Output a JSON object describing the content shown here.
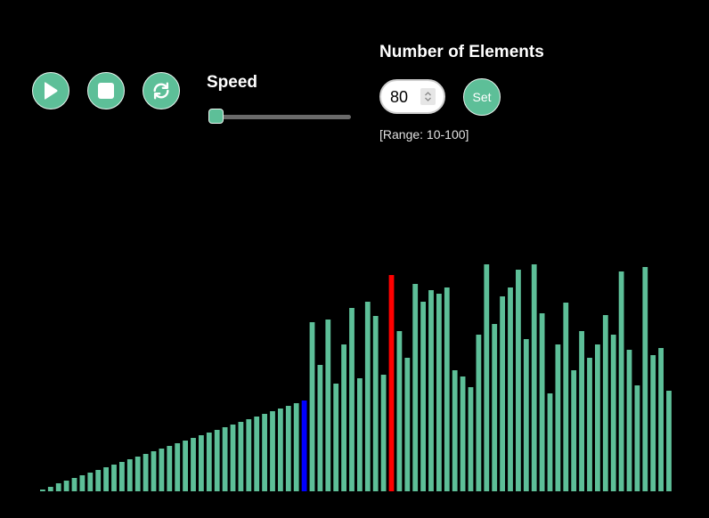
{
  "controls": {
    "play_icon": "play-icon",
    "stop_icon": "stop-icon",
    "reset_icon": "refresh-icon"
  },
  "speed": {
    "label": "Speed",
    "value_fraction": 0.0
  },
  "elements": {
    "label": "Number of Elements",
    "value": "80",
    "set_label": "Set",
    "range_note": "[Range: 10-100]"
  },
  "colors": {
    "bar": "#5dbf98",
    "comparing": "#ff0000",
    "pivot": "#0000ff",
    "background": "#000000"
  },
  "visualizer": {
    "highlight_red_index": 44,
    "highlight_blue_index": 33,
    "values": [
      2,
      5,
      9,
      12,
      15,
      18,
      21,
      24,
      27,
      30,
      33,
      36,
      39,
      42,
      45,
      48,
      51,
      54,
      57,
      60,
      63,
      66,
      69,
      72,
      75,
      78,
      81,
      84,
      87,
      90,
      93,
      96,
      99,
      102,
      190,
      142,
      193,
      121,
      165,
      206,
      127,
      213,
      197,
      131,
      243,
      180,
      150,
      233,
      213,
      226,
      222,
      229,
      136,
      129,
      117,
      176,
      255,
      188,
      219,
      229,
      249,
      171,
      255,
      200,
      110,
      165,
      212,
      136,
      180,
      150,
      165,
      198,
      176,
      247,
      159,
      119,
      252,
      153,
      161,
      113
    ]
  }
}
